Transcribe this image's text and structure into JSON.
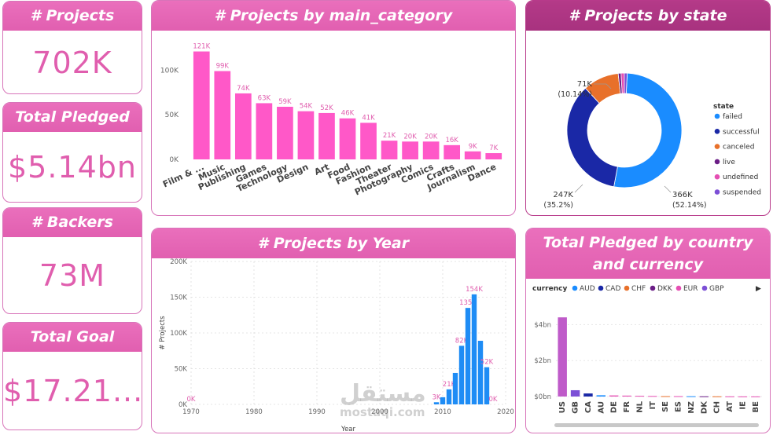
{
  "kpis": {
    "projects": {
      "title": "# Projects",
      "value": "702K"
    },
    "pledged": {
      "title": "Total Pledged",
      "value": "$5.14bn"
    },
    "backers": {
      "title": "# Backers",
      "value": "73M"
    },
    "goal": {
      "title": "Total Goal",
      "value": "$17.21..."
    }
  },
  "watermark": {
    "arabic": "مستقل",
    "latin": "mostaqi.com"
  },
  "chart_data": [
    {
      "id": "category",
      "type": "bar",
      "title": "# Projects by main_category",
      "categories": [
        "Film & ...",
        "Music",
        "Publishing",
        "Games",
        "Technology",
        "Design",
        "Art",
        "Food",
        "Fashion",
        "Theater",
        "Photography",
        "Comics",
        "Crafts",
        "Journalism",
        "Dance"
      ],
      "values": [
        121,
        99,
        74,
        63,
        59,
        54,
        52,
        46,
        41,
        21,
        20,
        20,
        16,
        9,
        7
      ],
      "data_labels": [
        "121K",
        "99K",
        "74K",
        "63K",
        "59K",
        "54K",
        "52K",
        "46K",
        "41K",
        "21K",
        "20K",
        "20K",
        "16K",
        "9K",
        "7K"
      ],
      "y_ticks": [
        "0K",
        "50K",
        "100K"
      ],
      "ylim": [
        0,
        125
      ],
      "color": "#ff58c8"
    },
    {
      "id": "state",
      "type": "pie",
      "title": "# Projects by state",
      "legend_title": "state",
      "slices": [
        {
          "name": "failed",
          "value": 52.14,
          "color": "#1a8cff"
        },
        {
          "name": "successful",
          "value": 35.2,
          "color": "#1a28a6"
        },
        {
          "name": "canceled",
          "value": 10.14,
          "color": "#e8702a"
        },
        {
          "name": "live",
          "value": 0.8,
          "color": "#6b1d86"
        },
        {
          "name": "undefined",
          "value": 0.9,
          "color": "#e54fb3"
        },
        {
          "name": "suspended",
          "value": 0.82,
          "color": "#7c4fd6"
        }
      ],
      "labels": {
        "failed": {
          "count": "366K",
          "pct": "(52.14%)"
        },
        "successful": {
          "count": "247K",
          "pct": "(35.2%)"
        },
        "canceled": {
          "count": "71K",
          "pct": "(10.14%)"
        }
      },
      "legend_placement": "right"
    },
    {
      "id": "year",
      "type": "bar",
      "title": "# Projects by Year",
      "ylabel": "# Projects",
      "xlabel": "Year",
      "x": [
        1970,
        2009,
        2010,
        2011,
        2012,
        2013,
        2014,
        2015,
        2016,
        2017,
        2018
      ],
      "values": [
        0,
        3,
        10,
        21,
        44,
        82,
        135,
        154,
        89,
        52,
        0
      ],
      "data_labels": {
        "1970": "0K",
        "2009": "3K",
        "2011": "21K",
        "2013": "82K",
        "2014": "135K",
        "2015": "154K",
        "2017": "52K",
        "2018": "0K"
      },
      "x_ticks": [
        1970,
        1980,
        1990,
        2000,
        2010,
        2020
      ],
      "y_ticks": [
        "0K",
        "50K",
        "100K",
        "150K",
        "200K"
      ],
      "ylim": [
        0,
        200
      ],
      "grid": true,
      "color": "#1e8cf5"
    },
    {
      "id": "country",
      "type": "bar",
      "title": "Total Pledged by country and currency",
      "legend_title": "currency",
      "legend": [
        {
          "name": "AUD",
          "color": "#1a8cff"
        },
        {
          "name": "CAD",
          "color": "#1a28a6"
        },
        {
          "name": "CHF",
          "color": "#e8702a"
        },
        {
          "name": "DKK",
          "color": "#6b1d86"
        },
        {
          "name": "EUR",
          "color": "#e54fb3"
        },
        {
          "name": "GBP",
          "color": "#7c4fd6"
        }
      ],
      "legend_more": "▶",
      "categories": [
        "US",
        "GB",
        "CA",
        "AU",
        "DE",
        "FR",
        "NL",
        "IT",
        "SE",
        "ES",
        "NZ",
        "DK",
        "CH",
        "AT",
        "IE",
        "BE"
      ],
      "values": [
        4.4,
        0.35,
        0.17,
        0.07,
        0.06,
        0.05,
        0.04,
        0.03,
        0.02,
        0.02,
        0.015,
        0.01,
        0.01,
        0.008,
        0.006,
        0.005
      ],
      "colors": [
        "#bf5bc9",
        "#7c4fd6",
        "#1a28a6",
        "#1a8cff",
        "#e54fb3",
        "#e54fb3",
        "#e54fb3",
        "#e54fb3",
        "#e8702a",
        "#e54fb3",
        "#1a8cff",
        "#6b1d86",
        "#e8702a",
        "#e54fb3",
        "#e54fb3",
        "#e54fb3"
      ],
      "y_ticks": [
        "$0bn",
        "$2bn",
        "$4bn"
      ],
      "ylim": [
        0,
        4.8
      ]
    }
  ]
}
